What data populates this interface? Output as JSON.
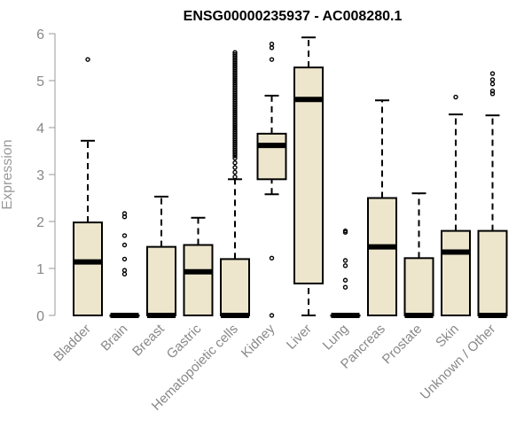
{
  "chart_data": {
    "type": "boxplot",
    "title": "ENSG00000235937 - AC008280.1",
    "xlabel": "",
    "ylabel": "Expression",
    "ylim": [
      0,
      6
    ],
    "yticks": [
      0,
      1,
      2,
      3,
      4,
      5,
      6
    ],
    "grid": false,
    "legend": "none",
    "box_fill": "#ede6cd",
    "line_color": "#000000",
    "outlier_dense_ranges": [
      {
        "category": "Hematopoietic cells",
        "from": 3.4,
        "to": 5.6,
        "step": 0.04
      }
    ],
    "boxes": [
      {
        "category": "Bladder",
        "q1": 0.0,
        "median": 1.14,
        "q3": 1.98,
        "whisker_low": 0.0,
        "whisker_high": 3.72,
        "outliers": [
          5.45
        ]
      },
      {
        "category": "Brain",
        "q1": 0.0,
        "median": 0.0,
        "q3": 0.0,
        "whisker_low": 0.0,
        "whisker_high": 0.0,
        "outliers": [
          0.88,
          0.96,
          1.2,
          1.5,
          1.7,
          2.1,
          2.17
        ]
      },
      {
        "category": "Breast",
        "q1": 0.0,
        "median": 0.0,
        "q3": 1.46,
        "whisker_low": 0.0,
        "whisker_high": 2.53,
        "outliers": []
      },
      {
        "category": "Gastric",
        "q1": 0.0,
        "median": 0.93,
        "q3": 1.5,
        "whisker_low": 0.0,
        "whisker_high": 2.08,
        "outliers": []
      },
      {
        "category": "Hematopoietic cells",
        "q1": 0.0,
        "median": 0.0,
        "q3": 1.2,
        "whisker_low": 0.0,
        "whisker_high": 2.9,
        "outliers": [
          2.95,
          3.05,
          3.15,
          3.25,
          3.35
        ]
      },
      {
        "category": "Kidney",
        "q1": 2.9,
        "median": 3.62,
        "q3": 3.87,
        "whisker_low": 2.58,
        "whisker_high": 4.68,
        "outliers": [
          0.0,
          1.22,
          5.45,
          5.7,
          5.78
        ]
      },
      {
        "category": "Liver",
        "q1": 0.68,
        "median": 4.6,
        "q3": 5.28,
        "whisker_low": 0.0,
        "whisker_high": 5.92,
        "outliers": []
      },
      {
        "category": "Lung",
        "q1": 0.0,
        "median": 0.0,
        "q3": 0.0,
        "whisker_low": 0.0,
        "whisker_high": 0.0,
        "outliers": [
          0.6,
          0.75,
          1.06,
          1.17,
          1.77,
          1.8
        ]
      },
      {
        "category": "Pancreas",
        "q1": 0.0,
        "median": 1.46,
        "q3": 2.5,
        "whisker_low": 0.0,
        "whisker_high": 4.58,
        "outliers": []
      },
      {
        "category": "Prostate",
        "q1": 0.0,
        "median": 0.0,
        "q3": 1.22,
        "whisker_low": 0.0,
        "whisker_high": 2.6,
        "outliers": []
      },
      {
        "category": "Skin",
        "q1": 0.0,
        "median": 1.35,
        "q3": 1.8,
        "whisker_low": 0.0,
        "whisker_high": 4.28,
        "outliers": [
          4.65
        ]
      },
      {
        "category": "Unknown / Other",
        "q1": 0.0,
        "median": 0.0,
        "q3": 1.8,
        "whisker_low": 0.0,
        "whisker_high": 4.26,
        "outliers": [
          4.72,
          4.78,
          4.93,
          5.02,
          5.15
        ]
      }
    ]
  }
}
